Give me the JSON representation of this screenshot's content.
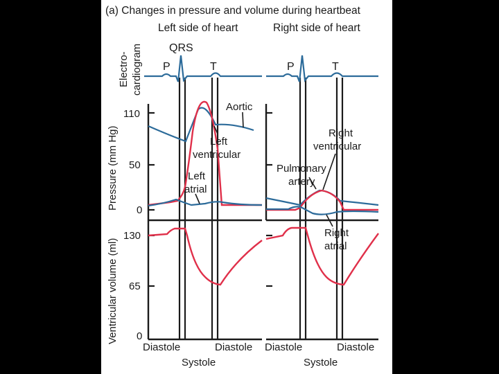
{
  "figure": {
    "title": "(a) Changes in pressure and volume during heartbeat",
    "left_header": "Left side of heart",
    "right_header": "Right side of heart",
    "ecg_axis_label_line1": "Electro-",
    "ecg_axis_label_line2": "cardiogram",
    "ecg_labels": {
      "qrs": "QRS",
      "p_left": "P",
      "t_left": "T",
      "p_right": "P",
      "t_right": "T"
    },
    "pressure_axis_label": "Pressure (mm Hg)",
    "pressure_ticks": [
      "110",
      "50",
      "0"
    ],
    "volume_axis_label": "Ventricular volume (ml)",
    "volume_ticks": [
      "130",
      "65",
      "0"
    ],
    "curve_labels": {
      "aortic": "Aortic",
      "left_ventricular_1": "Left",
      "left_ventricular_2": "ventricular",
      "left_atrial_1": "Left",
      "left_atrial_2": "atrial",
      "right_ventricular_1": "Right",
      "right_ventricular_2": "ventricular",
      "pulmonary_1": "Pulmonary",
      "pulmonary_2": "artery",
      "right_atrial_1": "Right",
      "right_atrial_2": "atrial"
    },
    "phase_labels": {
      "left_diastole_1": "Diastole",
      "left_diastole_2": "Diastole",
      "left_systole": "Systole",
      "right_diastole_1": "Diastole",
      "right_diastole_2": "Diastole",
      "right_systole": "Systole"
    },
    "colors": {
      "panel_bg": "#ffffff",
      "page_bg": "#000000",
      "blue_curve": "#2c6b9a",
      "red_curve": "#e0304a",
      "lines": "#1a1a1a"
    }
  }
}
